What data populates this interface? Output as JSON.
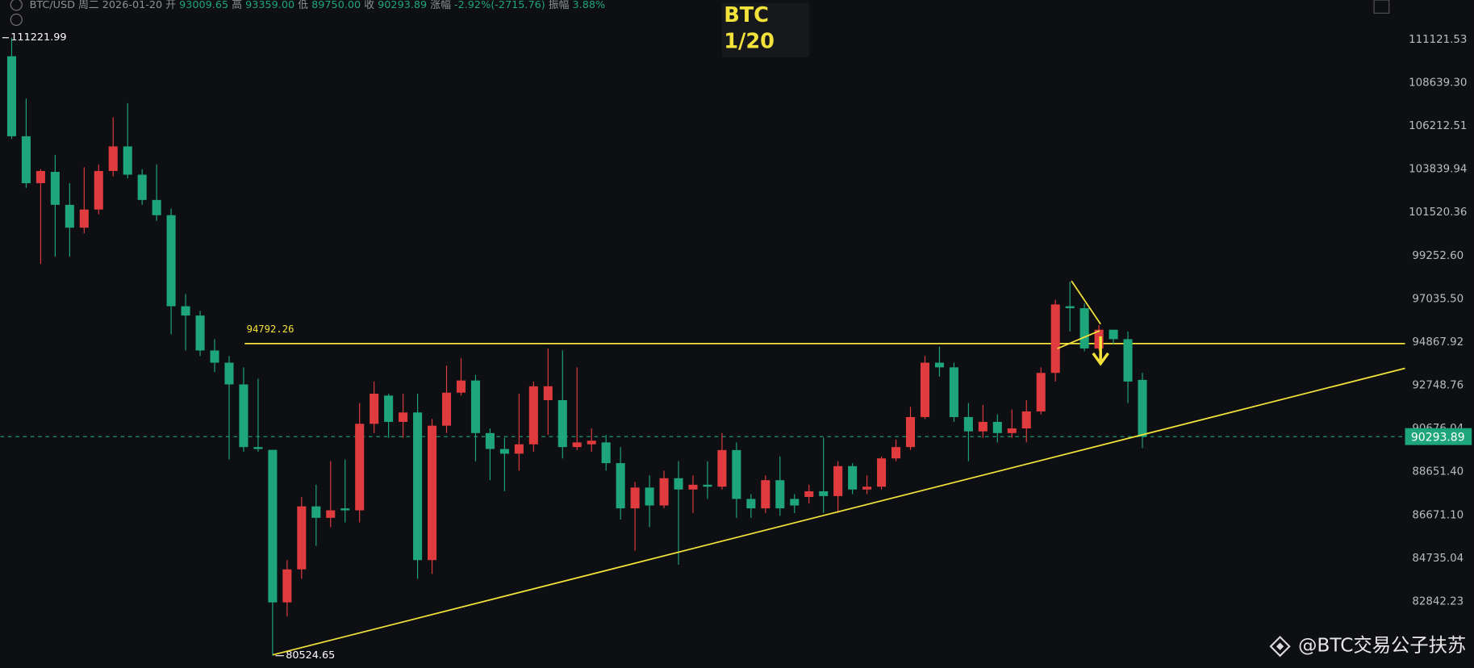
{
  "header": {
    "symbol": "BTC/USD",
    "weekday": "周二",
    "date": "2026-01-20",
    "items": [
      {
        "label": "开",
        "value": "93009.65"
      },
      {
        "label": "高",
        "value": "93359.00"
      },
      {
        "label": "低",
        "value": "89750.00"
      },
      {
        "label": "收",
        "value": "90293.89"
      },
      {
        "label": "涨幅",
        "value": "-2.92%(-2715.76)"
      },
      {
        "label": "振幅",
        "value": "3.88%"
      }
    ]
  },
  "note": {
    "line1": "BTC",
    "line2": "1/20"
  },
  "watermark": "@BTC交易公子扶苏",
  "chart_data": {
    "type": "candlestick",
    "log_scale": true,
    "up_color": "#e03b3e",
    "down_color": "#1ea57a",
    "level_color": "#f2e23a",
    "ylim": [
      80008,
      113436
    ],
    "yticks": [
      111121.53,
      {
        "value": 108639.3,
        "label": "108639.30"
      },
      106212.51,
      103839.94,
      101520.36,
      {
        "value": 99252.6,
        "label": "99252.60"
      },
      {
        "value": 97035.5,
        "label": "97035.50"
      },
      94867.92,
      92748.76,
      90676.04,
      {
        "value": 88651.4,
        "label": "88651.40"
      },
      {
        "value": 86671.1,
        "label": "86671.10"
      },
      84735.04,
      82842.23
    ],
    "level": 94792.26,
    "last_price": 90293.89,
    "candles": {
      "open": [
        110150,
        105640,
        103080,
        103690,
        101920,
        100710,
        101670,
        103740,
        105080,
        103540,
        102180,
        101370,
        96660,
        96190,
        94450,
        93850,
        92790,
        89800,
        89670,
        82800,
        84240,
        87060,
        86540,
        86970,
        86880,
        90900,
        92250,
        90990,
        91440,
        84650,
        90810,
        92390,
        92980,
        90460,
        89710,
        89490,
        89930,
        92030,
        92030,
        89800,
        89930,
        90020,
        89050,
        86970,
        87920,
        87100,
        88350,
        87830,
        88050,
        87960,
        89660,
        87400,
        86970,
        88260,
        87400,
        87490,
        87750,
        87530,
        88910,
        87830,
        87960,
        89270,
        89800,
        91220,
        93850,
        93620,
        91220,
        90540,
        90990,
        90460,
        90680,
        91490,
        93350,
        96660,
        96560,
        94550,
        95480,
        95010,
        93009.65
      ],
      "high": [
        111221.99,
        107740,
        103840,
        104610,
        103080,
        103940,
        104100,
        106690,
        107480,
        103840,
        104100,
        101720,
        97280,
        96420,
        95010,
        94180,
        93620,
        93070,
        89670,
        84650,
        87490,
        88050,
        89140,
        89220,
        91890,
        92930,
        92340,
        92340,
        92340,
        91130,
        93710,
        94080,
        93250,
        90680,
        90240,
        92340,
        92930,
        94550,
        94450,
        93620,
        90680,
        90370,
        89800,
        88180,
        88480,
        88700,
        89140,
        88480,
        89140,
        90460,
        90020,
        87620,
        88480,
        89360,
        87620,
        88050,
        90240,
        89140,
        89050,
        88480,
        89360,
        90150,
        91710,
        94180,
        94640,
        93850,
        91890,
        91800,
        91350,
        91580,
        92030,
        93620,
        96990,
        97910,
        96800,
        95720,
        95480,
        95390,
        93359
      ],
      "low": [
        105490,
        102830,
        98820,
        99200,
        99200,
        100410,
        101420,
        103440,
        103340,
        101920,
        101070,
        95250,
        94450,
        94180,
        93390,
        89220,
        89580,
        89580,
        80524.65,
        82200,
        83830,
        85280,
        86120,
        86330,
        86330,
        90460,
        90240,
        90240,
        83830,
        84040,
        90460,
        92250,
        89140,
        88260,
        87750,
        88700,
        89580,
        90370,
        89270,
        89660,
        89580,
        88700,
        86460,
        85070,
        86120,
        86970,
        84450,
        86760,
        87400,
        87830,
        86540,
        86540,
        86760,
        86630,
        86760,
        87190,
        86760,
        86760,
        87620,
        87620,
        87830,
        89140,
        89660,
        91130,
        93170,
        90990,
        89140,
        90240,
        90020,
        90240,
        90020,
        91350,
        92930,
        95390,
        94410,
        94450,
        94780,
        91890,
        89750
      ],
      "close": [
        105640,
        103080,
        103740,
        101920,
        100710,
        101670,
        103740,
        105080,
        103540,
        102180,
        101370,
        96660,
        96190,
        94450,
        93850,
        92790,
        89800,
        89710,
        82800,
        84240,
        87060,
        86540,
        86880,
        86880,
        90900,
        92340,
        90990,
        91440,
        84650,
        90810,
        92390,
        92980,
        90460,
        89710,
        89490,
        89930,
        92700,
        92700,
        89800,
        90020,
        90100,
        89050,
        86970,
        87920,
        87100,
        88350,
        87830,
        88050,
        87960,
        89660,
        87400,
        86970,
        88260,
        86970,
        87100,
        87750,
        87530,
        88910,
        87830,
        87960,
        89270,
        89800,
        91220,
        93850,
        93620,
        91220,
        90540,
        90990,
        90460,
        90680,
        91490,
        93350,
        96750,
        96560,
        94550,
        95480,
        95010,
        92930,
        90293.89
      ]
    }
  }
}
